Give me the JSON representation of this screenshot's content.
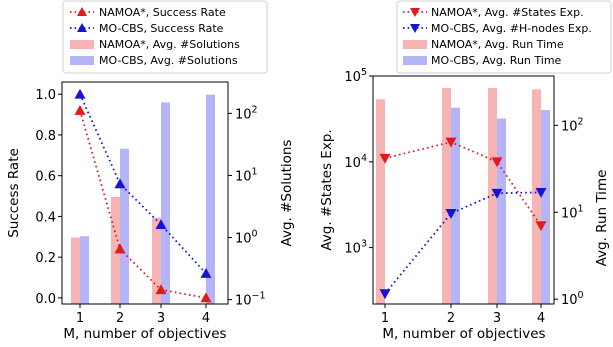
{
  "chart_data": [
    {
      "type": "bar+line",
      "xlabel": "M, number of objectives",
      "ylabel_left": "Success Rate",
      "ylabel_right": "Avg. #Solutions",
      "x": [
        1,
        2,
        3,
        4
      ],
      "x_ticks": [
        "1",
        "2",
        "3",
        "4"
      ],
      "y_left_ticks": [
        "0.0",
        "0.2",
        "0.4",
        "0.6",
        "0.8",
        "1.0"
      ],
      "y_left_lim": [
        -0.03,
        1.06
      ],
      "y_right_scale": "log",
      "y_right_ticks": [
        {
          "base": "10",
          "exp": "−1",
          "value": 0.1
        },
        {
          "base": "10",
          "exp": "0",
          "value": 1
        },
        {
          "base": "10",
          "exp": "1",
          "value": 10
        },
        {
          "base": "10",
          "exp": "2",
          "value": 100
        }
      ],
      "y_right_lim": [
        0.085,
        320
      ],
      "legend_position": "above",
      "lines": [
        {
          "name": "NAMOA*, Success Rate",
          "color": "#e31a1c",
          "marker": "triangle-up",
          "values": [
            0.92,
            0.24,
            0.04,
            0.0
          ]
        },
        {
          "name": "MO-CBS, Success Rate",
          "color": "#1414d2",
          "marker": "triangle-up",
          "values": [
            1.0,
            0.56,
            0.36,
            0.12
          ]
        }
      ],
      "bars": [
        {
          "name": "NAMOA*, Avg. #Solutions",
          "color": "#f7b4b4",
          "values": [
            1.0,
            4.5,
            2.1,
            null
          ]
        },
        {
          "name": "MO-CBS, Avg. #Solutions",
          "color": "#b4b4f7",
          "values": [
            1.05,
            27,
            150,
            200
          ]
        }
      ]
    },
    {
      "type": "bar+line",
      "xlabel": "M, number of objectives",
      "ylabel_left": "Avg. #States Exp.",
      "ylabel_right": "Avg. Run Time",
      "x": [
        1,
        2,
        3,
        4
      ],
      "x_ticks": [
        "1",
        "2",
        "3",
        "4"
      ],
      "y_left_scale": "log",
      "y_left_ticks": [
        {
          "base": "10",
          "exp": "3",
          "value": 1000
        },
        {
          "base": "10",
          "exp": "4",
          "value": 10000
        },
        {
          "base": "10",
          "exp": "5",
          "value": 100000
        }
      ],
      "y_left_lim": [
        220,
        100000
      ],
      "y_right_scale": "log",
      "y_right_ticks": [
        {
          "base": "10",
          "exp": "0",
          "value": 1
        },
        {
          "base": "10",
          "exp": "1",
          "value": 10
        },
        {
          "base": "10",
          "exp": "2",
          "value": 100
        }
      ],
      "y_right_lim": [
        0.88,
        370
      ],
      "legend_position": "above",
      "lines": [
        {
          "name": "NAMOA*, Avg. #States Exp.",
          "color": "#e31a1c",
          "marker": "triangle-down",
          "values": [
            11000,
            17000,
            10000,
            1800
          ]
        },
        {
          "name": "MO-CBS, Avg. #H-nodes Exp.",
          "color": "#1414d2",
          "marker": "triangle-down",
          "values": [
            290,
            2500,
            4300,
            4400
          ]
        }
      ],
      "bars": [
        {
          "name": "NAMOA*, Avg. Run Time",
          "color": "#f7b4b4",
          "values": [
            200,
            270,
            270,
            260
          ]
        },
        {
          "name": "MO-CBS, Avg. Run Time",
          "color": "#b4b4f7",
          "values": [
            null,
            160,
            120,
            150
          ]
        }
      ]
    }
  ]
}
